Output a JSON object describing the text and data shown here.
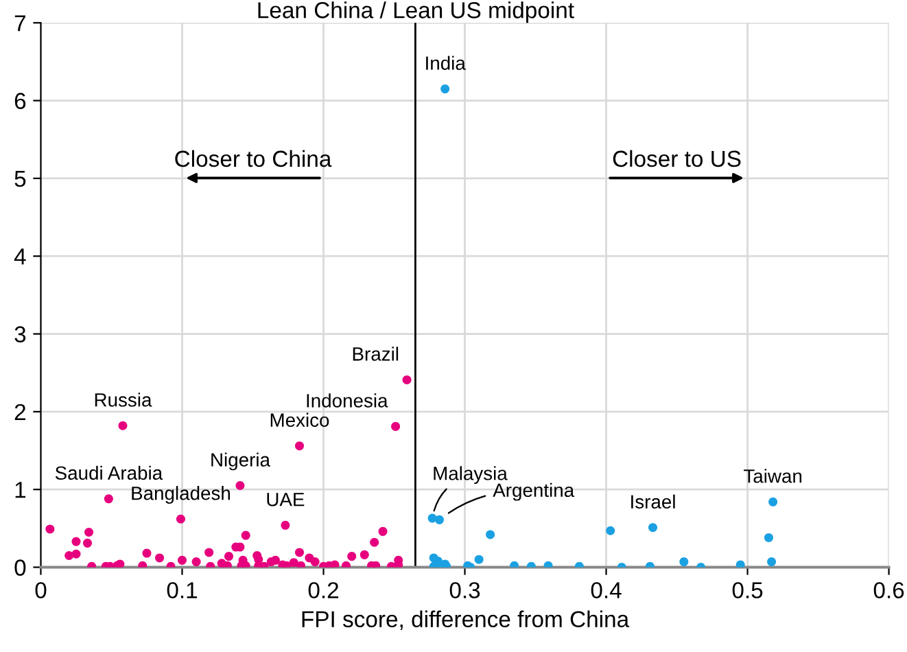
{
  "chart_data": {
    "type": "scatter",
    "xlabel": "FPI score, difference from China",
    "xlim": [
      0,
      0.6
    ],
    "xticks": [
      0,
      0.1,
      0.2,
      0.3,
      0.4,
      0.5,
      0.6
    ],
    "ylim": [
      0,
      7
    ],
    "yticks": [
      0,
      1,
      2,
      3,
      4,
      5,
      6,
      7
    ],
    "grid": true,
    "marker": "circle",
    "ref_lines": [
      {
        "axis": "x",
        "value": 0.265,
        "label": "Lean China / Lean US midpoint",
        "color": "#000000"
      }
    ],
    "series": [
      {
        "color": "#e6007e",
        "x": [
          0.0065,
          0.02,
          0.025,
          0.025,
          0.033,
          0.034,
          0.036,
          0.046,
          0.048,
          0.049,
          0.054,
          0.056,
          0.058,
          0.072,
          0.075,
          0.084,
          0.092,
          0.099,
          0.1,
          0.11,
          0.119,
          0.12,
          0.128,
          0.132,
          0.133,
          0.138,
          0.141,
          0.141,
          0.142,
          0.143,
          0.145,
          0.145,
          0.153,
          0.154,
          0.154,
          0.158,
          0.163,
          0.166,
          0.171,
          0.173,
          0.174,
          0.179,
          0.183,
          0.183,
          0.184,
          0.19,
          0.194,
          0.2,
          0.204,
          0.208,
          0.216,
          0.22,
          0.229,
          0.234,
          0.236,
          0.237,
          0.242,
          0.248,
          0.251,
          0.253,
          0.253,
          0.259
        ],
        "values": [
          0.49,
          0.15,
          0.17,
          0.33,
          0.31,
          0.45,
          0.01,
          0.01,
          0.88,
          0.01,
          0.02,
          0.04,
          1.82,
          0.02,
          0.18,
          0.12,
          0.01,
          0.62,
          0.09,
          0.07,
          0.19,
          0.01,
          0.05,
          0.02,
          0.14,
          0.26,
          0.26,
          1.05,
          0.02,
          0.09,
          0.41,
          0.02,
          0.15,
          0.1,
          0.02,
          0.01,
          0.07,
          0.09,
          0.03,
          0.54,
          0.02,
          0.06,
          1.56,
          0.19,
          0.02,
          0.12,
          0.07,
          0.01,
          0.02,
          0.03,
          0.02,
          0.14,
          0.16,
          0.02,
          0.32,
          0.02,
          0.46,
          0.01,
          1.81,
          0.09,
          0.03,
          2.41
        ]
      },
      {
        "color": "#1ba1e2",
        "x": [
          0.277,
          0.282,
          0.278,
          0.278,
          0.281,
          0.282,
          0.286,
          0.287,
          0.302,
          0.304,
          0.31,
          0.318,
          0.335,
          0.347,
          0.359,
          0.381,
          0.403,
          0.411,
          0.431,
          0.433,
          0.455,
          0.467,
          0.495,
          0.515,
          0.518,
          0.517,
          0.286
        ],
        "values": [
          0.63,
          0.61,
          0.12,
          0.01,
          0.08,
          0.02,
          0.04,
          0.01,
          0.02,
          0.0,
          0.1,
          0.42,
          0.02,
          0.01,
          0.02,
          0.01,
          0.47,
          0.0,
          0.01,
          0.51,
          0.07,
          0.0,
          0.03,
          0.38,
          0.84,
          0.07,
          6.15
        ]
      }
    ],
    "annotations": [
      "Closer to China",
      "Closer to US",
      {
        "text": "India",
        "x": 0.286,
        "y": 6.15
      },
      {
        "text": "Brazil",
        "x": 0.259,
        "y": 2.41
      },
      {
        "text": "Russia",
        "x": 0.058,
        "y": 1.82
      },
      {
        "text": "Indonesia",
        "x": 0.251,
        "y": 1.81
      },
      {
        "text": "Mexico",
        "x": 0.183,
        "y": 1.56
      },
      {
        "text": "Nigeria",
        "x": 0.141,
        "y": 1.05
      },
      {
        "text": "Saudi Arabia",
        "x": 0.048,
        "y": 0.88
      },
      {
        "text": "Bangladesh",
        "x": 0.099,
        "y": 0.62
      },
      {
        "text": "UAE",
        "x": 0.173,
        "y": 0.54
      },
      {
        "text": "Malaysia",
        "x": 0.277,
        "y": 0.63
      },
      {
        "text": "Argentina",
        "x": 0.282,
        "y": 0.61
      },
      {
        "text": "Israel",
        "x": 0.433,
        "y": 0.51
      },
      {
        "text": "Taiwan",
        "x": 0.518,
        "y": 0.84
      }
    ]
  }
}
